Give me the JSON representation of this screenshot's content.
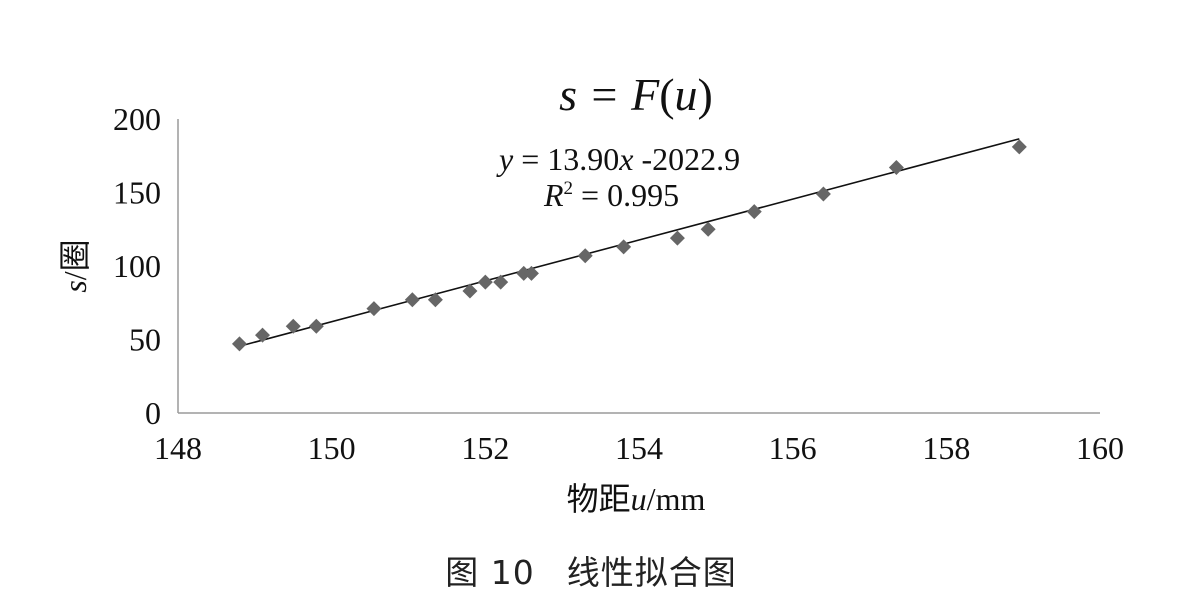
{
  "chart_data": {
    "type": "scatter",
    "title_prefix": "s = ",
    "title_func": "F",
    "title_open": "(",
    "title_var": "u",
    "title_close": ")",
    "xlabel_prefix": "物距",
    "xlabel_var": "u",
    "xlabel_unit": "/mm",
    "ylabel_var": "s",
    "ylabel_unit": "/圈",
    "xlim": [
      148,
      160
    ],
    "ylim": [
      0,
      200
    ],
    "x_ticks": [
      "148",
      "150",
      "152",
      "154",
      "156",
      "158",
      "160"
    ],
    "y_ticks": [
      "0",
      "50",
      "100",
      "150",
      "200"
    ],
    "grid": false,
    "trendline": {
      "slope": 13.9,
      "intercept": -2022.9,
      "x_range": [
        148.8,
        158.95
      ],
      "eq_var_y": "y",
      "eq_eq": " = 13.90",
      "eq_var_x": "x",
      "eq_rest": " -2022.9",
      "r2_var": "R",
      "r2_sup": "2",
      "r2_rest": " = 0.995"
    },
    "points": [
      {
        "x": 148.8,
        "y": 47
      },
      {
        "x": 149.1,
        "y": 53
      },
      {
        "x": 149.5,
        "y": 59
      },
      {
        "x": 149.8,
        "y": 59
      },
      {
        "x": 150.55,
        "y": 71
      },
      {
        "x": 151.05,
        "y": 77
      },
      {
        "x": 151.35,
        "y": 77
      },
      {
        "x": 151.8,
        "y": 83
      },
      {
        "x": 152.0,
        "y": 89
      },
      {
        "x": 152.2,
        "y": 89
      },
      {
        "x": 152.5,
        "y": 95
      },
      {
        "x": 152.6,
        "y": 95
      },
      {
        "x": 153.3,
        "y": 107
      },
      {
        "x": 153.8,
        "y": 113
      },
      {
        "x": 154.5,
        "y": 119
      },
      {
        "x": 154.9,
        "y": 125
      },
      {
        "x": 155.5,
        "y": 137
      },
      {
        "x": 156.4,
        "y": 149
      },
      {
        "x": 157.35,
        "y": 167
      },
      {
        "x": 158.95,
        "y": 181
      }
    ],
    "marker_color": "#666666",
    "line_color": "#111111"
  },
  "caption": {
    "figure_no": "图 10",
    "text": "线性拟合图"
  }
}
